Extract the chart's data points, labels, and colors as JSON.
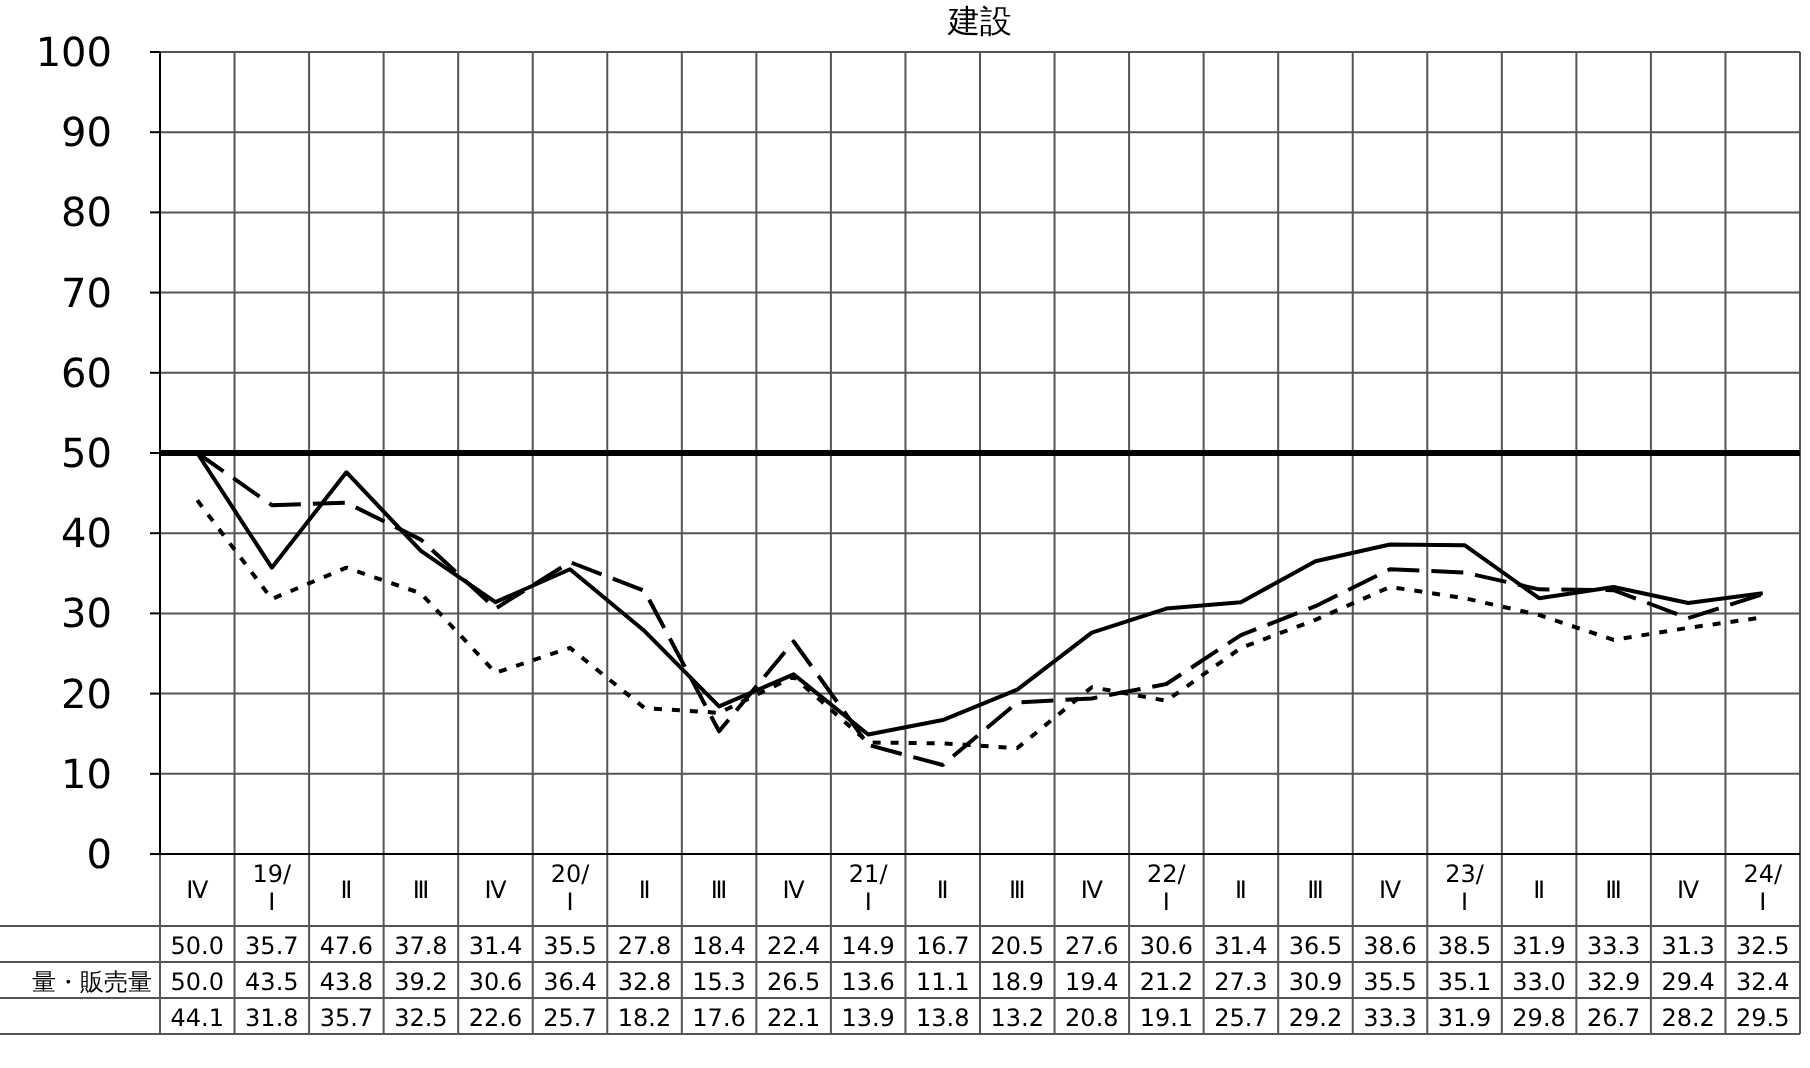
{
  "chart_data": {
    "type": "line",
    "title": "建設",
    "categories": [
      "Ⅳ",
      "19/\nⅠ",
      "Ⅱ",
      "Ⅲ",
      "Ⅳ",
      "20/\nⅠ",
      "Ⅱ",
      "Ⅲ",
      "Ⅳ",
      "21/\nⅠ",
      "Ⅱ",
      "Ⅲ",
      "Ⅳ",
      "22/\nⅠ",
      "Ⅱ",
      "Ⅲ",
      "Ⅳ",
      "23/\nⅠ",
      "Ⅱ",
      "Ⅲ",
      "Ⅳ",
      "24/\nⅠ"
    ],
    "series": [
      {
        "color": "#000000",
        "line_style": "solid",
        "values": [
          50.0,
          35.7,
          47.6,
          37.8,
          31.4,
          35.5,
          27.8,
          18.4,
          22.4,
          14.9,
          16.7,
          20.5,
          27.6,
          30.6,
          31.4,
          36.5,
          38.6,
          38.5,
          31.9,
          33.3,
          31.3,
          32.5
        ],
        "value_labels": [
          "50.0",
          "35.7",
          "47.6",
          "37.8",
          "31.4",
          "35.5",
          "27.8",
          "18.4",
          "22.4",
          "14.9",
          "16.7",
          "20.5",
          "27.6",
          "30.6",
          "31.4",
          "36.5",
          "38.6",
          "38.5",
          "31.9",
          "33.3",
          "31.3",
          "32.5"
        ]
      },
      {
        "name": "量・販売量",
        "color": "#000000",
        "line_style": "dashed",
        "values": [
          50.0,
          43.5,
          43.8,
          39.2,
          30.6,
          36.4,
          32.8,
          15.3,
          26.5,
          13.6,
          11.1,
          18.9,
          19.4,
          21.2,
          27.3,
          30.9,
          35.5,
          35.1,
          33.0,
          32.9,
          29.4,
          32.4
        ],
        "value_labels": [
          "50.0",
          "43.5",
          "43.8",
          "39.2",
          "30.6",
          "36.4",
          "32.8",
          "15.3",
          "26.5",
          "13.6",
          "11.1",
          "18.9",
          "19.4",
          "21.2",
          "27.3",
          "30.9",
          "35.5",
          "35.1",
          "33.0",
          "32.9",
          "29.4",
          "32.4"
        ]
      },
      {
        "color": "#000000",
        "line_style": "dotted",
        "values": [
          44.1,
          31.8,
          35.7,
          32.5,
          22.6,
          25.7,
          18.2,
          17.6,
          22.1,
          13.9,
          13.8,
          13.2,
          20.8,
          19.1,
          25.7,
          29.2,
          33.3,
          31.9,
          29.8,
          26.7,
          28.2,
          29.5
        ],
        "value_labels": [
          "44.1",
          "31.8",
          "35.7",
          "32.5",
          "22.6",
          "25.7",
          "18.2",
          "17.6",
          "22.1",
          "13.9",
          "13.8",
          "13.2",
          "20.8",
          "19.1",
          "25.7",
          "29.2",
          "33.3",
          "31.9",
          "29.8",
          "26.7",
          "28.2",
          "29.5"
        ]
      }
    ],
    "ylim": [
      0,
      100
    ],
    "yticks": [
      0,
      10,
      20,
      30,
      40,
      50,
      60,
      70,
      80,
      90,
      100
    ],
    "grid": true,
    "ref_lines": [
      {
        "axis": "y",
        "value": 50,
        "color": "#000000"
      }
    ]
  }
}
